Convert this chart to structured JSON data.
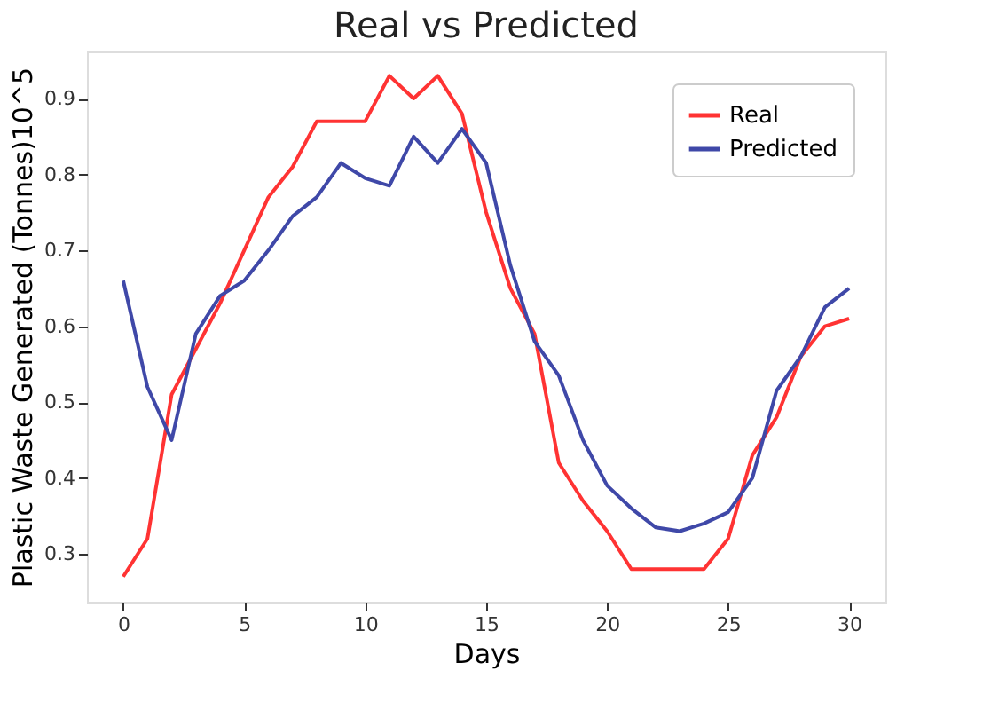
{
  "chart_data": {
    "type": "line",
    "title": "Real vs Predicted",
    "xlabel": "Days",
    "ylabel": "Plastic Waste Generated (Tonnes)10^5",
    "x": [
      0,
      1,
      2,
      3,
      4,
      5,
      6,
      7,
      8,
      9,
      10,
      11,
      12,
      13,
      14,
      15,
      16,
      17,
      18,
      19,
      20,
      21,
      22,
      23,
      24,
      25,
      26,
      27,
      28,
      29,
      30
    ],
    "series": [
      {
        "name": "Real",
        "color": "#ff3333",
        "values": [
          0.27,
          0.32,
          0.51,
          0.57,
          0.63,
          0.7,
          0.77,
          0.81,
          0.87,
          0.87,
          0.87,
          0.93,
          0.9,
          0.93,
          0.88,
          0.75,
          0.65,
          0.59,
          0.42,
          0.37,
          0.33,
          0.28,
          0.28,
          0.28,
          0.28,
          0.32,
          0.43,
          0.48,
          0.56,
          0.6,
          0.61
        ]
      },
      {
        "name": "Predicted",
        "color": "#3f48a8",
        "values": [
          0.66,
          0.52,
          0.45,
          0.59,
          0.64,
          0.66,
          0.7,
          0.745,
          0.77,
          0.815,
          0.795,
          0.785,
          0.85,
          0.815,
          0.86,
          0.815,
          0.68,
          0.58,
          0.535,
          0.45,
          0.39,
          0.36,
          0.335,
          0.33,
          0.34,
          0.355,
          0.4,
          0.515,
          0.56,
          0.625,
          0.65
        ]
      }
    ],
    "xlim": [
      -1.5,
      31.5
    ],
    "xticks": [
      0,
      5,
      10,
      15,
      20,
      25,
      30
    ],
    "ylim": [
      0.237,
      0.962
    ],
    "yticks": [
      0.3,
      0.4,
      0.5,
      0.6,
      0.7,
      0.8,
      0.9
    ],
    "grid": false,
    "legend": "top right",
    "marker": "none",
    "line_style": "solid"
  }
}
